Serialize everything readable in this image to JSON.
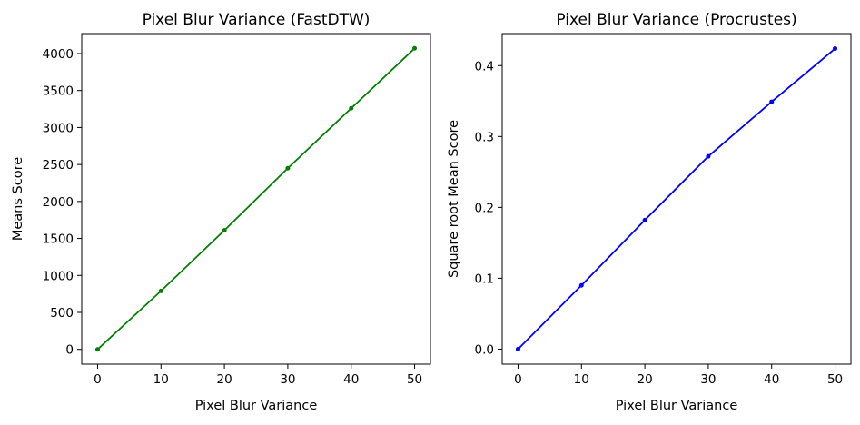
{
  "chart_data": [
    {
      "type": "line",
      "title": "Pixel Blur Variance (FastDTW)",
      "xlabel": "Pixel Blur Variance",
      "ylabel": "Means Score",
      "xlim": [
        -2.5,
        52.5
      ],
      "ylim": [
        -200,
        4270
      ],
      "xticks": [
        0,
        10,
        20,
        30,
        40,
        50
      ],
      "yticks": [
        0,
        500,
        1000,
        1500,
        2000,
        2500,
        3000,
        3500,
        4000
      ],
      "grid": false,
      "series": [
        {
          "color": "#008000",
          "marker": "circle",
          "x": [
            0,
            10,
            20,
            30,
            40,
            50
          ],
          "y": [
            0,
            790,
            1610,
            2450,
            3260,
            4070
          ]
        }
      ]
    },
    {
      "type": "line",
      "title": "Pixel Blur Variance (Procrustes)",
      "xlabel": "Pixel Blur Variance",
      "ylabel": "Square root Mean Score",
      "xlim": [
        -2.5,
        52.5
      ],
      "ylim": [
        -0.0212,
        0.4452
      ],
      "xticks": [
        0,
        10,
        20,
        30,
        40,
        50
      ],
      "yticks": [
        0.0,
        0.1,
        0.2,
        0.3,
        0.4
      ],
      "grid": false,
      "series": [
        {
          "color": "#0000ff",
          "marker": "circle",
          "x": [
            0,
            10,
            20,
            30,
            40,
            50
          ],
          "y": [
            0.0,
            0.09,
            0.182,
            0.272,
            0.349,
            0.424
          ]
        }
      ]
    }
  ]
}
